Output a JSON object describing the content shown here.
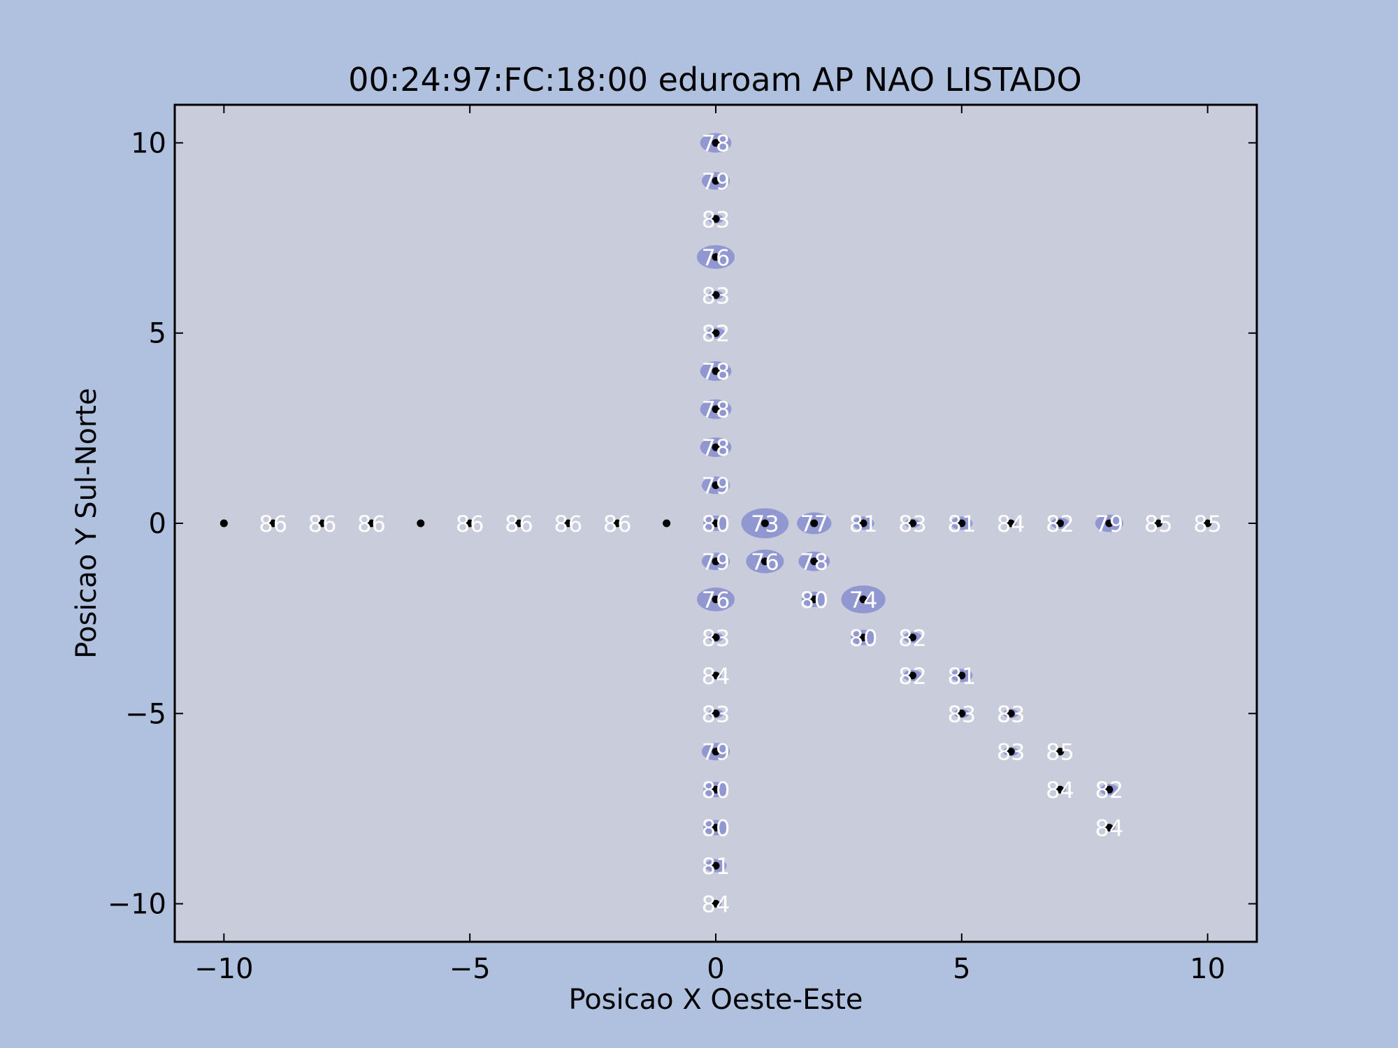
{
  "chart_data": {
    "type": "scatter",
    "title": "00:24:97:FC:18:00 eduroam AP NAO LISTADO",
    "xlabel": "Posicao X Oeste-Este",
    "ylabel": "Posicao Y Sul-Norte",
    "xlim": [
      -11,
      11
    ],
    "ylim": [
      -11,
      11
    ],
    "xticks": [
      -10,
      -5,
      0,
      5,
      10
    ],
    "yticks": [
      -10,
      -5,
      0,
      5,
      10
    ],
    "xtick_labels": [
      "−10",
      "−5",
      "0",
      "5",
      "10"
    ],
    "ytick_labels": [
      "−10",
      "−5",
      "0",
      "5",
      "10"
    ],
    "grid": false,
    "legend": "none",
    "colors": {
      "figure_bg": "#b0c1e0",
      "axes_bg": "#c8ccdb",
      "marker": "#000000",
      "ellipse": "#7f86cc",
      "label": "#ffffff"
    },
    "points": [
      {
        "x": -10,
        "y": 0,
        "label": ""
      },
      {
        "x": -9,
        "y": 0,
        "label": "86"
      },
      {
        "x": -8,
        "y": 0,
        "label": "86"
      },
      {
        "x": -7,
        "y": 0,
        "label": "86"
      },
      {
        "x": -6,
        "y": 0,
        "label": ""
      },
      {
        "x": -5,
        "y": 0,
        "label": "86"
      },
      {
        "x": -4,
        "y": 0,
        "label": "86"
      },
      {
        "x": -3,
        "y": 0,
        "label": "86"
      },
      {
        "x": -2,
        "y": 0,
        "label": "86"
      },
      {
        "x": -1,
        "y": 0,
        "label": ""
      },
      {
        "x": 0,
        "y": 0,
        "label": "80"
      },
      {
        "x": 1,
        "y": 0,
        "label": "73"
      },
      {
        "x": 2,
        "y": 0,
        "label": "77"
      },
      {
        "x": 3,
        "y": 0,
        "label": "81"
      },
      {
        "x": 4,
        "y": 0,
        "label": "83"
      },
      {
        "x": 5,
        "y": 0,
        "label": "81"
      },
      {
        "x": 6,
        "y": 0,
        "label": "84"
      },
      {
        "x": 7,
        "y": 0,
        "label": "82"
      },
      {
        "x": 8,
        "y": 0,
        "label": "79"
      },
      {
        "x": 9,
        "y": 0,
        "label": "85"
      },
      {
        "x": 10,
        "y": 0,
        "label": "85"
      },
      {
        "x": 0,
        "y": 10,
        "label": "78"
      },
      {
        "x": 0,
        "y": 9,
        "label": "79"
      },
      {
        "x": 0,
        "y": 8,
        "label": "83"
      },
      {
        "x": 0,
        "y": 7,
        "label": "76"
      },
      {
        "x": 0,
        "y": 6,
        "label": "83"
      },
      {
        "x": 0,
        "y": 5,
        "label": "82"
      },
      {
        "x": 0,
        "y": 4,
        "label": "78"
      },
      {
        "x": 0,
        "y": 3,
        "label": "78"
      },
      {
        "x": 0,
        "y": 2,
        "label": "78"
      },
      {
        "x": 0,
        "y": 1,
        "label": "79"
      },
      {
        "x": 0,
        "y": -1,
        "label": "79"
      },
      {
        "x": 0,
        "y": -2,
        "label": "76"
      },
      {
        "x": 0,
        "y": -3,
        "label": "83"
      },
      {
        "x": 0,
        "y": -4,
        "label": "84"
      },
      {
        "x": 0,
        "y": -5,
        "label": "83"
      },
      {
        "x": 0,
        "y": -6,
        "label": "79"
      },
      {
        "x": 0,
        "y": -7,
        "label": "80"
      },
      {
        "x": 0,
        "y": -8,
        "label": "80"
      },
      {
        "x": 0,
        "y": -9,
        "label": "81"
      },
      {
        "x": 0,
        "y": -10,
        "label": "84"
      },
      {
        "x": 1,
        "y": -1,
        "label": "76"
      },
      {
        "x": 2,
        "y": -1,
        "label": "78"
      },
      {
        "x": 2,
        "y": -2,
        "label": "80"
      },
      {
        "x": 3,
        "y": -2,
        "label": "74"
      },
      {
        "x": 3,
        "y": -3,
        "label": "80"
      },
      {
        "x": 4,
        "y": -3,
        "label": "82"
      },
      {
        "x": 4,
        "y": -4,
        "label": "82"
      },
      {
        "x": 5,
        "y": -4,
        "label": "81"
      },
      {
        "x": 5,
        "y": -5,
        "label": "83"
      },
      {
        "x": 6,
        "y": -5,
        "label": "83"
      },
      {
        "x": 6,
        "y": -6,
        "label": "83"
      },
      {
        "x": 7,
        "y": -6,
        "label": "85"
      },
      {
        "x": 7,
        "y": -7,
        "label": "84"
      },
      {
        "x": 8,
        "y": -7,
        "label": "82"
      },
      {
        "x": 8,
        "y": -8,
        "label": "84"
      }
    ]
  }
}
